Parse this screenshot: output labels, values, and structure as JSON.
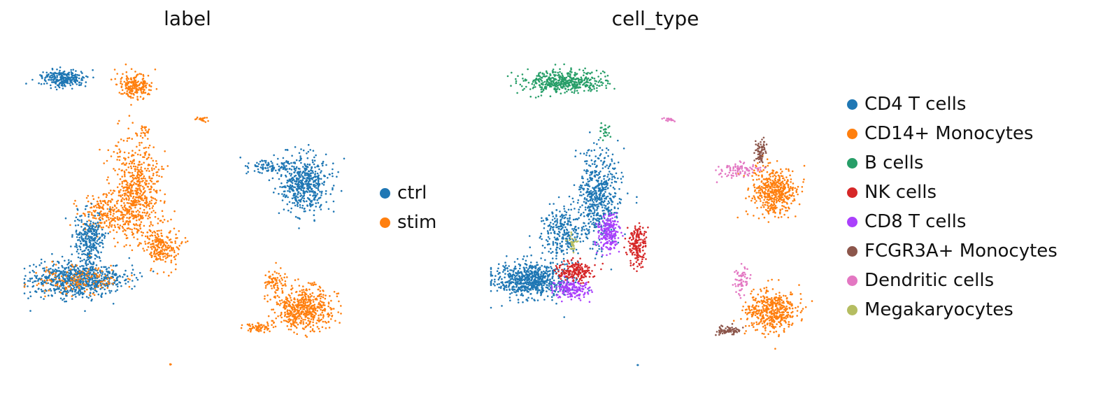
{
  "chart_data": [
    {
      "type": "scatter",
      "title": "label",
      "xlabel": "",
      "ylabel": "",
      "grid": false,
      "legend_position": "right",
      "legend": [
        {
          "name": "ctrl",
          "color": "#1f77b4"
        },
        {
          "name": "stim",
          "color": "#ff7f0e"
        }
      ],
      "clusters": [
        {
          "group": "ctrl",
          "center": [
            0.12,
            0.09
          ],
          "spread": [
            0.06,
            0.025
          ],
          "count": 260
        },
        {
          "group": "stim",
          "center": [
            0.34,
            0.11
          ],
          "spread": [
            0.05,
            0.035
          ],
          "count": 200
        },
        {
          "group": "stim",
          "center": [
            0.37,
            0.26
          ],
          "spread": [
            0.015,
            0.02
          ],
          "count": 20
        },
        {
          "group": "stim",
          "center": [
            0.55,
            0.22
          ],
          "spread": [
            0.02,
            0.006
          ],
          "count": 18
        },
        {
          "group": "stim",
          "center": [
            0.34,
            0.45
          ],
          "spread": [
            0.07,
            0.14
          ],
          "count": 650
        },
        {
          "group": "stim",
          "center": [
            0.42,
            0.62
          ],
          "spread": [
            0.05,
            0.06
          ],
          "count": 220
        },
        {
          "group": "stim",
          "center": [
            0.24,
            0.52
          ],
          "spread": [
            0.06,
            0.05
          ],
          "count": 160
        },
        {
          "group": "ctrl",
          "center": [
            0.2,
            0.6
          ],
          "spread": [
            0.04,
            0.08
          ],
          "count": 280
        },
        {
          "group": "ctrl",
          "center": [
            0.16,
            0.73
          ],
          "spread": [
            0.13,
            0.05
          ],
          "count": 760
        },
        {
          "group": "stim",
          "center": [
            0.16,
            0.73
          ],
          "spread": [
            0.12,
            0.045
          ],
          "count": 140
        },
        {
          "group": "ctrl",
          "center": [
            0.86,
            0.42
          ],
          "spread": [
            0.07,
            0.08
          ],
          "count": 520
        },
        {
          "group": "ctrl",
          "center": [
            0.75,
            0.37
          ],
          "spread": [
            0.07,
            0.02
          ],
          "count": 80
        },
        {
          "group": "stim",
          "center": [
            0.86,
            0.82
          ],
          "spread": [
            0.08,
            0.06
          ],
          "count": 520
        },
        {
          "group": "stim",
          "center": [
            0.77,
            0.74
          ],
          "spread": [
            0.03,
            0.04
          ],
          "count": 70
        },
        {
          "group": "stim",
          "center": [
            0.72,
            0.88
          ],
          "spread": [
            0.04,
            0.015
          ],
          "count": 60
        },
        {
          "group": "stim",
          "center": [
            0.45,
            1.0
          ],
          "spread": [
            0.003,
            0.003
          ],
          "count": 3
        }
      ]
    },
    {
      "type": "scatter",
      "title": "cell_type",
      "xlabel": "",
      "ylabel": "",
      "grid": false,
      "legend_position": "right",
      "legend": [
        {
          "name": "CD4 T cells",
          "color": "#1f77b4"
        },
        {
          "name": "CD14+ Monocytes",
          "color": "#ff7f0e"
        },
        {
          "name": "B cells",
          "color": "#279e68"
        },
        {
          "name": "NK cells",
          "color": "#d62728"
        },
        {
          "name": "CD8 T cells",
          "color": "#aa40fc"
        },
        {
          "name": "FCGR3A+ Monocytes",
          "color": "#8c564b"
        },
        {
          "name": "Dendritic cells",
          "color": "#e377c2"
        },
        {
          "name": "Megakaryocytes",
          "color": "#b5bd61"
        }
      ],
      "clusters": [
        {
          "group": "B cells",
          "center": [
            0.22,
            0.1
          ],
          "spread": [
            0.12,
            0.03
          ],
          "count": 460
        },
        {
          "group": "B cells",
          "center": [
            0.35,
            0.26
          ],
          "spread": [
            0.015,
            0.03
          ],
          "count": 25
        },
        {
          "group": "Dendritic cells",
          "center": [
            0.55,
            0.22
          ],
          "spread": [
            0.02,
            0.006
          ],
          "count": 18
        },
        {
          "group": "CD4 T cells",
          "center": [
            0.33,
            0.46
          ],
          "spread": [
            0.06,
            0.13
          ],
          "count": 560
        },
        {
          "group": "CD4 T cells",
          "center": [
            0.22,
            0.58
          ],
          "spread": [
            0.06,
            0.07
          ],
          "count": 250
        },
        {
          "group": "CD4 T cells",
          "center": [
            0.12,
            0.73
          ],
          "spread": [
            0.1,
            0.05
          ],
          "count": 700
        },
        {
          "group": "Megakaryocytes",
          "center": [
            0.25,
            0.61
          ],
          "spread": [
            0.012,
            0.03
          ],
          "count": 30
        },
        {
          "group": "CD8 T cells",
          "center": [
            0.36,
            0.58
          ],
          "spread": [
            0.03,
            0.05
          ],
          "count": 200
        },
        {
          "group": "CD8 T cells",
          "center": [
            0.25,
            0.76
          ],
          "spread": [
            0.05,
            0.03
          ],
          "count": 160
        },
        {
          "group": "NK cells",
          "center": [
            0.45,
            0.62
          ],
          "spread": [
            0.025,
            0.06
          ],
          "count": 180
        },
        {
          "group": "NK cells",
          "center": [
            0.26,
            0.7
          ],
          "spread": [
            0.05,
            0.03
          ],
          "count": 200
        },
        {
          "group": "CD14+ Monocytes",
          "center": [
            0.87,
            0.45
          ],
          "spread": [
            0.06,
            0.07
          ],
          "count": 470
        },
        {
          "group": "FCGR3A+ Monocytes",
          "center": [
            0.83,
            0.32
          ],
          "spread": [
            0.015,
            0.035
          ],
          "count": 70
        },
        {
          "group": "Dendritic cells",
          "center": [
            0.76,
            0.38
          ],
          "spread": [
            0.06,
            0.02
          ],
          "count": 90
        },
        {
          "group": "CD14+ Monocytes",
          "center": [
            0.86,
            0.83
          ],
          "spread": [
            0.07,
            0.06
          ],
          "count": 460
        },
        {
          "group": "Dendritic cells",
          "center": [
            0.77,
            0.73
          ],
          "spread": [
            0.02,
            0.05
          ],
          "count": 60
        },
        {
          "group": "FCGR3A+ Monocytes",
          "center": [
            0.73,
            0.89
          ],
          "spread": [
            0.035,
            0.012
          ],
          "count": 70
        },
        {
          "group": "CD4 T cells",
          "center": [
            0.45,
            1.0
          ],
          "spread": [
            0.003,
            0.003
          ],
          "count": 3
        }
      ]
    }
  ]
}
